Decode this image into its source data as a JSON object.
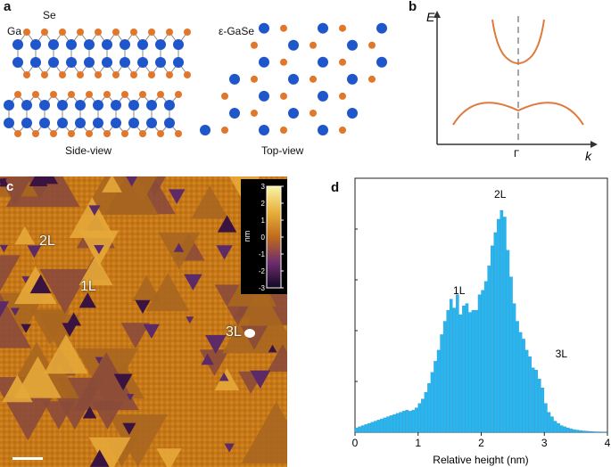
{
  "panel_a": {
    "letter": "a",
    "label_ga": "Ga",
    "label_se": "Se",
    "label_phase": "ε-GaSe",
    "caption_side": "Side-view",
    "caption_top": "Top-view",
    "colors": {
      "ga": "#1f56c9",
      "se": "#e0772a",
      "bond": "#8a8a8a"
    }
  },
  "panel_b": {
    "letter": "b",
    "axis_y": "E",
    "axis_x": "k",
    "point": "Γ",
    "colors": {
      "band": "#e07a3c",
      "axis": "#333333",
      "dash": "#888888"
    }
  },
  "panel_c": {
    "letter": "c",
    "labels": [
      "2L",
      "1L",
      "3L"
    ],
    "colorbar": {
      "unit": "nm",
      "ticks": [
        "3",
        "2",
        "1",
        "0",
        "-1",
        "-2",
        "-3"
      ]
    },
    "colors": {
      "low": "#1a0a2e",
      "mid": "#7a3b8c",
      "high": "#d98a20",
      "top": "#f5f0a0"
    }
  },
  "panel_d": {
    "letter": "d",
    "peak_labels": [
      "2L",
      "1L",
      "3L"
    ]
  },
  "chart_data": {
    "type": "bar",
    "title": "",
    "xlabel": "Relative height (nm)",
    "ylabel": "",
    "xlim": [
      0,
      4
    ],
    "ylim": [
      0,
      1.0
    ],
    "xticks": [
      "0",
      "1",
      "2",
      "3",
      "4"
    ],
    "bar_color": "#29b6f0",
    "bin_centers": [
      0.0,
      0.05,
      0.1,
      0.15,
      0.2,
      0.25,
      0.3,
      0.35,
      0.4,
      0.45,
      0.5,
      0.55,
      0.6,
      0.65,
      0.7,
      0.75,
      0.8,
      0.85,
      0.9,
      0.95,
      1.0,
      1.05,
      1.1,
      1.15,
      1.2,
      1.25,
      1.3,
      1.35,
      1.4,
      1.45,
      1.5,
      1.55,
      1.6,
      1.65,
      1.7,
      1.75,
      1.8,
      1.85,
      1.9,
      1.95,
      2.0,
      2.05,
      2.1,
      2.15,
      2.2,
      2.25,
      2.3,
      2.35,
      2.4,
      2.45,
      2.5,
      2.55,
      2.6,
      2.65,
      2.7,
      2.75,
      2.8,
      2.85,
      2.9,
      2.95,
      3.0,
      3.05,
      3.1,
      3.15,
      3.2,
      3.25,
      3.3,
      3.35,
      3.4,
      3.45,
      3.5,
      3.55,
      3.6,
      3.65,
      3.7,
      3.75,
      3.8,
      3.85,
      3.9,
      3.95
    ],
    "values": [
      0.02,
      0.025,
      0.03,
      0.035,
      0.04,
      0.045,
      0.05,
      0.055,
      0.06,
      0.065,
      0.07,
      0.075,
      0.08,
      0.085,
      0.09,
      0.095,
      0.1,
      0.095,
      0.1,
      0.11,
      0.13,
      0.15,
      0.18,
      0.22,
      0.27,
      0.32,
      0.37,
      0.44,
      0.5,
      0.55,
      0.6,
      0.56,
      0.62,
      0.53,
      0.57,
      0.58,
      0.54,
      0.55,
      0.55,
      0.62,
      0.64,
      0.68,
      0.75,
      0.84,
      0.9,
      0.96,
      1.0,
      0.97,
      0.82,
      0.7,
      0.58,
      0.5,
      0.45,
      0.42,
      0.37,
      0.34,
      0.29,
      0.28,
      0.24,
      0.2,
      0.13,
      0.09,
      0.07,
      0.05,
      0.04,
      0.03,
      0.025,
      0.02,
      0.016,
      0.012,
      0.01,
      0.008,
      0.006,
      0.005,
      0.004,
      0.003,
      0.002,
      0.002,
      0.001,
      0.001
    ],
    "annotations": [
      {
        "text": "1L",
        "x": 1.65
      },
      {
        "text": "2L",
        "x": 2.3
      },
      {
        "text": "3L",
        "x": 3.1
      }
    ]
  }
}
